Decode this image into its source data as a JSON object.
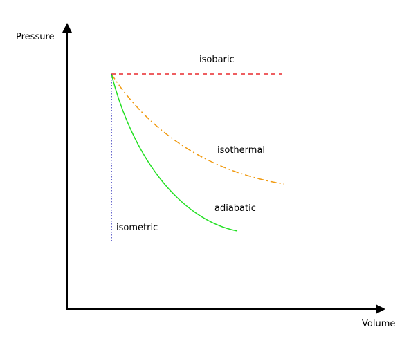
{
  "axes": {
    "x_label": "Volume",
    "y_label": "Pressure"
  },
  "processes": [
    {
      "id": "isobaric",
      "label": "isobaric",
      "color": "#e8282d",
      "line_style": "dashed"
    },
    {
      "id": "isothermal",
      "label": "isothermal",
      "color": "#f09a10",
      "line_style": "dash-dot"
    },
    {
      "id": "adiabatic",
      "label": "adiabatic",
      "color": "#22e022",
      "line_style": "solid"
    },
    {
      "id": "isometric",
      "label": "isometric",
      "color": "#3333bb",
      "line_style": "dotted"
    }
  ]
}
